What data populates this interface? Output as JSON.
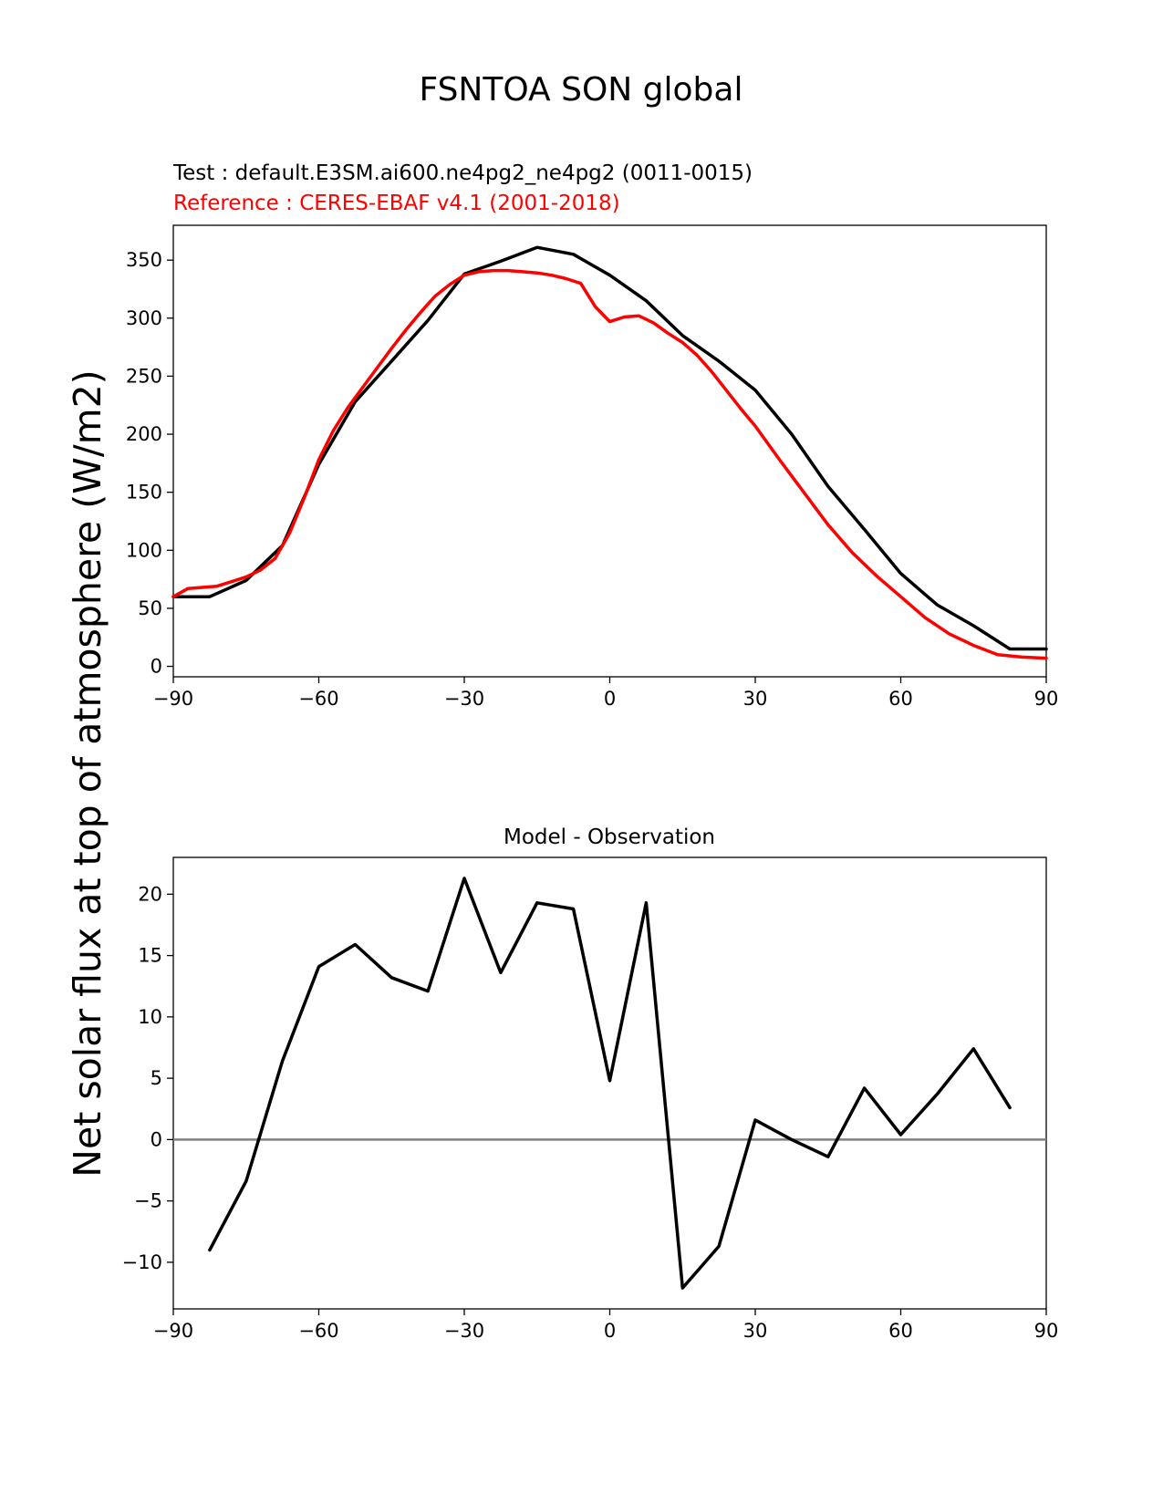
{
  "figure": {
    "suptitle": "FSNTOA SON global",
    "ylabel_big": "Net solar flux at top of atmosphere (W/m2)"
  },
  "colors": {
    "test": "#000000",
    "reference": "#ff0000",
    "zero_line": "#808080"
  },
  "chart_data": [
    {
      "type": "line",
      "test_label": "Test : default.E3SM.ai600.ne4pg2_ne4pg2 (0011-0015)",
      "reference_label": "Reference : CERES-EBAF v4.1 (2001-2018)",
      "xlim": [
        -90,
        90
      ],
      "ylim": [
        -9,
        380
      ],
      "xticks": [
        -90,
        -60,
        -30,
        0,
        30,
        60,
        90
      ],
      "xtick_labels": [
        "−90",
        "−60",
        "−30",
        "0",
        "30",
        "60",
        "90"
      ],
      "yticks": [
        0,
        50,
        100,
        150,
        200,
        250,
        300,
        350
      ],
      "ytick_labels": [
        "0",
        "50",
        "100",
        "150",
        "200",
        "250",
        "300",
        "350"
      ],
      "series": [
        {
          "name": "test",
          "x": [
            -90,
            -82.5,
            -75,
            -67.5,
            -60,
            -52.5,
            -45,
            -37.5,
            -30,
            -22.5,
            -15,
            -7.5,
            0,
            7.5,
            15,
            22.5,
            30,
            37.5,
            45,
            52.5,
            60,
            67.5,
            75,
            82.5,
            90
          ],
          "y": [
            60,
            60,
            74,
            104,
            174,
            228,
            263,
            298,
            338,
            349,
            361,
            355,
            337,
            315,
            285,
            263,
            238,
            200,
            155,
            118,
            80,
            53,
            35,
            15,
            15
          ]
        },
        {
          "name": "reference",
          "x": [
            -90,
            -87,
            -84,
            -81,
            -78,
            -75,
            -72,
            -69,
            -66,
            -63,
            -60,
            -57,
            -54,
            -51,
            -48,
            -45,
            -42,
            -39,
            -36,
            -33,
            -30,
            -27,
            -24,
            -21,
            -18,
            -15,
            -12,
            -9,
            -6,
            -3,
            0,
            3,
            6,
            9,
            12,
            15,
            18,
            21,
            24,
            27,
            30,
            35,
            40,
            45,
            50,
            55,
            60,
            65,
            70,
            75,
            80,
            85,
            90
          ],
          "y": [
            60,
            67,
            68,
            69,
            73,
            77,
            83,
            93,
            115,
            145,
            178,
            203,
            223,
            240,
            257,
            274,
            290,
            305,
            319,
            329,
            337,
            340,
            341,
            341,
            340,
            339,
            337,
            334,
            330,
            310,
            297,
            301,
            302,
            296,
            287,
            279,
            268,
            254,
            238,
            222,
            207,
            178,
            150,
            122,
            98,
            78,
            60,
            42,
            28,
            18,
            10,
            8,
            7
          ]
        }
      ]
    },
    {
      "type": "line",
      "title": "Model - Observation",
      "xlim": [
        -90,
        90
      ],
      "ylim": [
        -13.8,
        23
      ],
      "xticks": [
        -90,
        -60,
        -30,
        0,
        30,
        60,
        90
      ],
      "xtick_labels": [
        "−90",
        "−60",
        "−30",
        "0",
        "30",
        "60",
        "90"
      ],
      "yticks": [
        -10,
        -5,
        0,
        5,
        10,
        15,
        20
      ],
      "ytick_labels": [
        "−10",
        "−5",
        "0",
        "5",
        "10",
        "15",
        "20"
      ],
      "zero_line": 0,
      "series": [
        {
          "name": "difference",
          "x": [
            -82.5,
            -75,
            -67.5,
            -60,
            -52.5,
            -45,
            -37.5,
            -30,
            -22.5,
            -15,
            -7.5,
            0,
            7.5,
            15,
            22.5,
            30,
            37.5,
            45,
            52.5,
            60,
            67.5,
            75,
            82.5
          ],
          "y": [
            -9,
            -3.4,
            6.4,
            14.1,
            15.9,
            13.2,
            12.1,
            21.3,
            13.6,
            19.3,
            18.8,
            4.8,
            19.3,
            -12.1,
            -8.7,
            1.6,
            0.0,
            -1.4,
            4.2,
            0.4,
            3.7,
            7.4,
            2.6
          ]
        }
      ]
    }
  ]
}
